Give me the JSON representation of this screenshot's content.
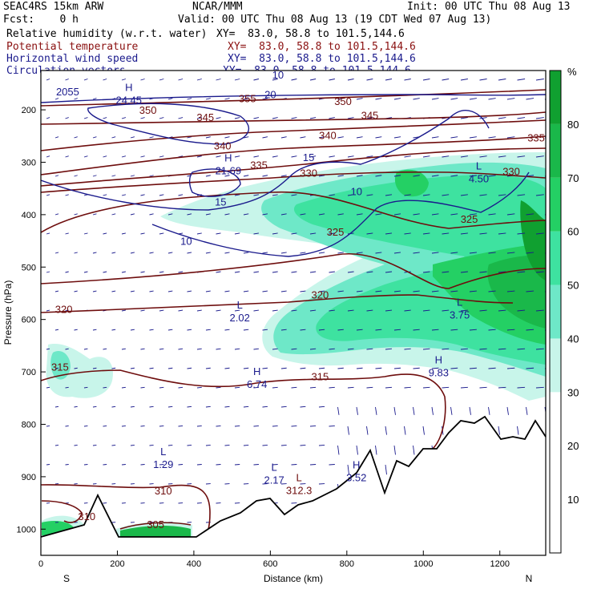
{
  "header": {
    "model": "SEAC4RS 15km ARW",
    "center": "NCAR/MMM",
    "init": "Init: 00 UTC Thu 08 Aug 13",
    "fcst": "Fcst:    0 h",
    "valid": "Valid: 00 UTC Thu 08 Aug 13 (19 CDT Wed 07 Aug 13)",
    "fields": [
      {
        "name": "Relative humidity (w.r.t. water)",
        "xy": "XY=  83.0, 58.8 to 101.5,144.6",
        "color": "#000000"
      },
      {
        "name": "Potential temperature",
        "xy": "XY=  83.0, 58.8 to 101.5,144.6",
        "color": "#8a1010"
      },
      {
        "name": "Horizontal wind speed",
        "xy": "XY=  83.0, 58.8 to 101.5,144.6",
        "color": "#1a1a8c"
      },
      {
        "name": "Circulation vectors",
        "xy": "XY=  83.0, 58.8 to 101.5,144.6",
        "color": "#1a1a8c"
      }
    ]
  },
  "chart_data": {
    "type": "heatmap",
    "xlabel": "Distance (km)",
    "ylabel": "Pressure (hPa)",
    "x_ticks": [
      0,
      200,
      400,
      600,
      800,
      1000,
      1200
    ],
    "y_ticks": [
      200,
      300,
      400,
      500,
      600,
      700,
      800,
      900,
      1000
    ],
    "xlim": [
      0,
      1320
    ],
    "ylim": [
      1050,
      125
    ],
    "end_labels": {
      "left": "S",
      "right": "N"
    },
    "colorbar": {
      "unit": "%",
      "ticks": [
        10,
        20,
        30,
        40,
        50,
        60,
        70,
        80
      ],
      "levels": [
        {
          "from": 30,
          "to": 40,
          "color": "#c8f5ea"
        },
        {
          "from": 40,
          "to": 50,
          "color": "#6ee8c8"
        },
        {
          "from": 50,
          "to": 60,
          "color": "#3ee2a0"
        },
        {
          "from": 60,
          "to": 70,
          "color": "#24d064"
        },
        {
          "from": 70,
          "to": 80,
          "color": "#1ab84a"
        },
        {
          "from": 80,
          "to": 90,
          "color": "#10a030"
        }
      ]
    },
    "potential_temperature_labels": [
      {
        "text": "355",
        "x": 540,
        "p": 178
      },
      {
        "text": "350",
        "x": 790,
        "p": 183
      },
      {
        "text": "350",
        "x": 280,
        "p": 200
      },
      {
        "text": "345",
        "x": 860,
        "p": 210
      },
      {
        "text": "345",
        "x": 430,
        "p": 214
      },
      {
        "text": "340",
        "x": 750,
        "p": 248
      },
      {
        "text": "340",
        "x": 475,
        "p": 268
      },
      {
        "text": "335",
        "x": 1295,
        "p": 253
      },
      {
        "text": "335",
        "x": 570,
        "p": 305
      },
      {
        "text": "330",
        "x": 700,
        "p": 320
      },
      {
        "text": "330",
        "x": 1230,
        "p": 317
      },
      {
        "text": "325",
        "x": 770,
        "p": 432
      },
      {
        "text": "325",
        "x": 1120,
        "p": 408
      },
      {
        "text": "320",
        "x": 730,
        "p": 552
      },
      {
        "text": "320",
        "x": 60,
        "p": 580
      },
      {
        "text": "315",
        "x": 50,
        "p": 690
      },
      {
        "text": "315",
        "x": 730,
        "p": 708
      },
      {
        "text": "310",
        "x": 320,
        "p": 926
      },
      {
        "text": "310",
        "x": 120,
        "p": 975
      },
      {
        "text": "305",
        "x": 300,
        "p": 990
      }
    ],
    "wind_speed_labels": [
      {
        "text": "2055",
        "x": 70,
        "p": 165
      },
      {
        "text": "10",
        "x": 620,
        "p": 133
      },
      {
        "text": "20",
        "x": 600,
        "p": 170
      },
      {
        "text": "15",
        "x": 700,
        "p": 290
      },
      {
        "text": "15",
        "x": 470,
        "p": 375
      },
      {
        "text": "10",
        "x": 825,
        "p": 355
      },
      {
        "text": "10",
        "x": 380,
        "p": 450
      }
    ],
    "extrema": [
      {
        "kind": "H",
        "value": "24.45",
        "x": 230,
        "p": 170
      },
      {
        "kind": "H",
        "value": "21.69",
        "x": 490,
        "p": 305
      },
      {
        "kind": "L",
        "value": "4.50",
        "x": 1145,
        "p": 320
      },
      {
        "kind": "L",
        "value": "2.02",
        "x": 520,
        "p": 585
      },
      {
        "kind": "L",
        "value": "3.75",
        "x": 1095,
        "p": 580
      },
      {
        "kind": "H",
        "value": "6.74",
        "x": 565,
        "p": 712
      },
      {
        "kind": "H",
        "value": "9.83",
        "x": 1040,
        "p": 690
      },
      {
        "kind": "L",
        "value": "1.29",
        "x": 320,
        "p": 865
      },
      {
        "kind": "L",
        "value": "2.17",
        "x": 610,
        "p": 895
      },
      {
        "kind": "L",
        "value": "312.3",
        "x": 675,
        "p": 915
      },
      {
        "kind": "H",
        "value": "3.52",
        "x": 825,
        "p": 890
      }
    ]
  }
}
